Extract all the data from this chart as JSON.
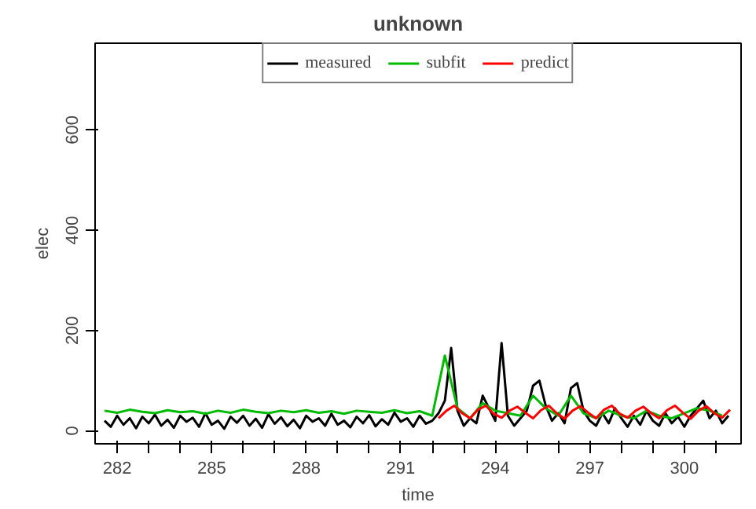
{
  "chart_data": {
    "type": "line",
    "title": "unknown",
    "xlabel": "time",
    "ylabel": "elec",
    "xlim": [
      281.3,
      301.8
    ],
    "ylim": [
      -26,
      773
    ],
    "xticks": [
      282,
      {
        "value": 283,
        "label": null
      },
      {
        "value": 284,
        "label": null
      },
      285,
      {
        "value": 286,
        "label": null
      },
      {
        "value": 287,
        "label": null
      },
      288,
      {
        "value": 289,
        "label": null
      },
      {
        "value": 290,
        "label": null
      },
      291,
      {
        "value": 292,
        "label": null
      },
      {
        "value": 293,
        "label": null
      },
      294,
      {
        "value": 295,
        "label": null
      },
      {
        "value": 296,
        "label": null
      },
      297,
      {
        "value": 298,
        "label": null
      },
      {
        "value": 299,
        "label": null
      },
      300,
      {
        "value": 301,
        "label": null
      }
    ],
    "yticks": [
      0,
      200,
      400,
      600
    ],
    "grid": false,
    "legend": "top",
    "line_style": "solid",
    "marker": "none",
    "series": [
      {
        "name": "measured",
        "color": "#000000",
        "x": [
          281.6,
          281.8,
          282.0,
          282.2,
          282.4,
          282.6,
          282.8,
          283.0,
          283.2,
          283.4,
          283.6,
          283.8,
          284.0,
          284.2,
          284.4,
          284.6,
          284.8,
          285.0,
          285.2,
          285.4,
          285.6,
          285.8,
          286.0,
          286.2,
          286.4,
          286.6,
          286.8,
          287.0,
          287.2,
          287.4,
          287.6,
          287.8,
          288.0,
          288.2,
          288.4,
          288.6,
          288.8,
          289.0,
          289.2,
          289.4,
          289.6,
          289.8,
          290.0,
          290.2,
          290.4,
          290.6,
          290.8,
          291.0,
          291.2,
          291.4,
          291.6,
          291.8,
          292.0,
          292.2,
          292.4,
          292.6,
          292.8,
          293.0,
          293.2,
          293.4,
          293.6,
          293.8,
          294.0,
          294.2,
          294.4,
          294.6,
          294.8,
          295.0,
          295.2,
          295.4,
          295.6,
          295.8,
          296.0,
          296.2,
          296.4,
          296.6,
          296.8,
          297.0,
          297.2,
          297.4,
          297.6,
          297.8,
          298.0,
          298.2,
          298.4,
          298.6,
          298.8,
          299.0,
          299.2,
          299.4,
          299.6,
          299.8,
          300.0,
          300.2,
          300.4,
          300.6,
          300.8,
          301.0,
          301.2,
          301.4
        ],
        "values": [
          20,
          8,
          30,
          12,
          25,
          5,
          28,
          15,
          32,
          10,
          22,
          6,
          30,
          18,
          26,
          8,
          35,
          12,
          20,
          4,
          28,
          16,
          30,
          10,
          24,
          6,
          33,
          14,
          27,
          9,
          22,
          5,
          30,
          18,
          25,
          10,
          34,
          12,
          20,
          7,
          28,
          15,
          31,
          9,
          23,
          12,
          36,
          18,
          25,
          8,
          30,
          14,
          20,
          35,
          60,
          165,
          40,
          10,
          25,
          15,
          70,
          45,
          20,
          175,
          30,
          10,
          25,
          40,
          90,
          100,
          50,
          20,
          35,
          15,
          85,
          95,
          40,
          20,
          10,
          35,
          15,
          45,
          25,
          8,
          30,
          12,
          40,
          20,
          10,
          35,
          15,
          28,
          8,
          30,
          45,
          60,
          25,
          40,
          15,
          30
        ]
      },
      {
        "name": "subfit",
        "color": "#00bb00",
        "x": [
          281.6,
          282.0,
          282.4,
          282.8,
          283.2,
          283.6,
          284.0,
          284.4,
          284.8,
          285.2,
          285.6,
          286.0,
          286.4,
          286.8,
          287.2,
          287.6,
          288.0,
          288.4,
          288.8,
          289.2,
          289.6,
          290.0,
          290.4,
          290.8,
          291.2,
          291.6,
          292.0,
          292.4,
          292.8,
          293.2,
          293.6,
          294.0,
          294.4,
          294.8,
          295.2,
          295.6,
          296.0,
          296.4,
          296.8,
          297.2,
          297.6,
          298.0,
          298.4,
          298.8,
          299.2,
          299.6,
          300.0,
          300.4,
          300.8,
          301.2
        ],
        "values": [
          40,
          36,
          42,
          38,
          35,
          41,
          37,
          39,
          34,
          40,
          36,
          42,
          38,
          35,
          40,
          37,
          41,
          36,
          39,
          34,
          40,
          38,
          36,
          41,
          35,
          39,
          30,
          150,
          45,
          25,
          55,
          40,
          35,
          30,
          70,
          45,
          30,
          70,
          35,
          25,
          40,
          30,
          25,
          40,
          30,
          25,
          35,
          45,
          40,
          30
        ]
      },
      {
        "name": "predict",
        "color": "#ff0000",
        "x": [
          292.2,
          292.45,
          292.7,
          292.95,
          293.2,
          293.45,
          293.7,
          293.95,
          294.2,
          294.45,
          294.7,
          294.95,
          295.2,
          295.45,
          295.7,
          295.95,
          296.2,
          296.45,
          296.7,
          296.95,
          297.2,
          297.45,
          297.7,
          297.95,
          298.2,
          298.45,
          298.7,
          298.95,
          299.2,
          299.45,
          299.7,
          299.95,
          300.2,
          300.45,
          300.7,
          300.95,
          301.2,
          301.45
        ],
        "values": [
          25,
          40,
          50,
          35,
          25,
          42,
          50,
          34,
          26,
          40,
          48,
          36,
          25,
          41,
          50,
          35,
          24,
          40,
          49,
          36,
          25,
          42,
          50,
          34,
          26,
          40,
          48,
          35,
          25,
          41,
          50,
          36,
          24,
          40,
          49,
          35,
          26,
          42
        ]
      }
    ]
  }
}
